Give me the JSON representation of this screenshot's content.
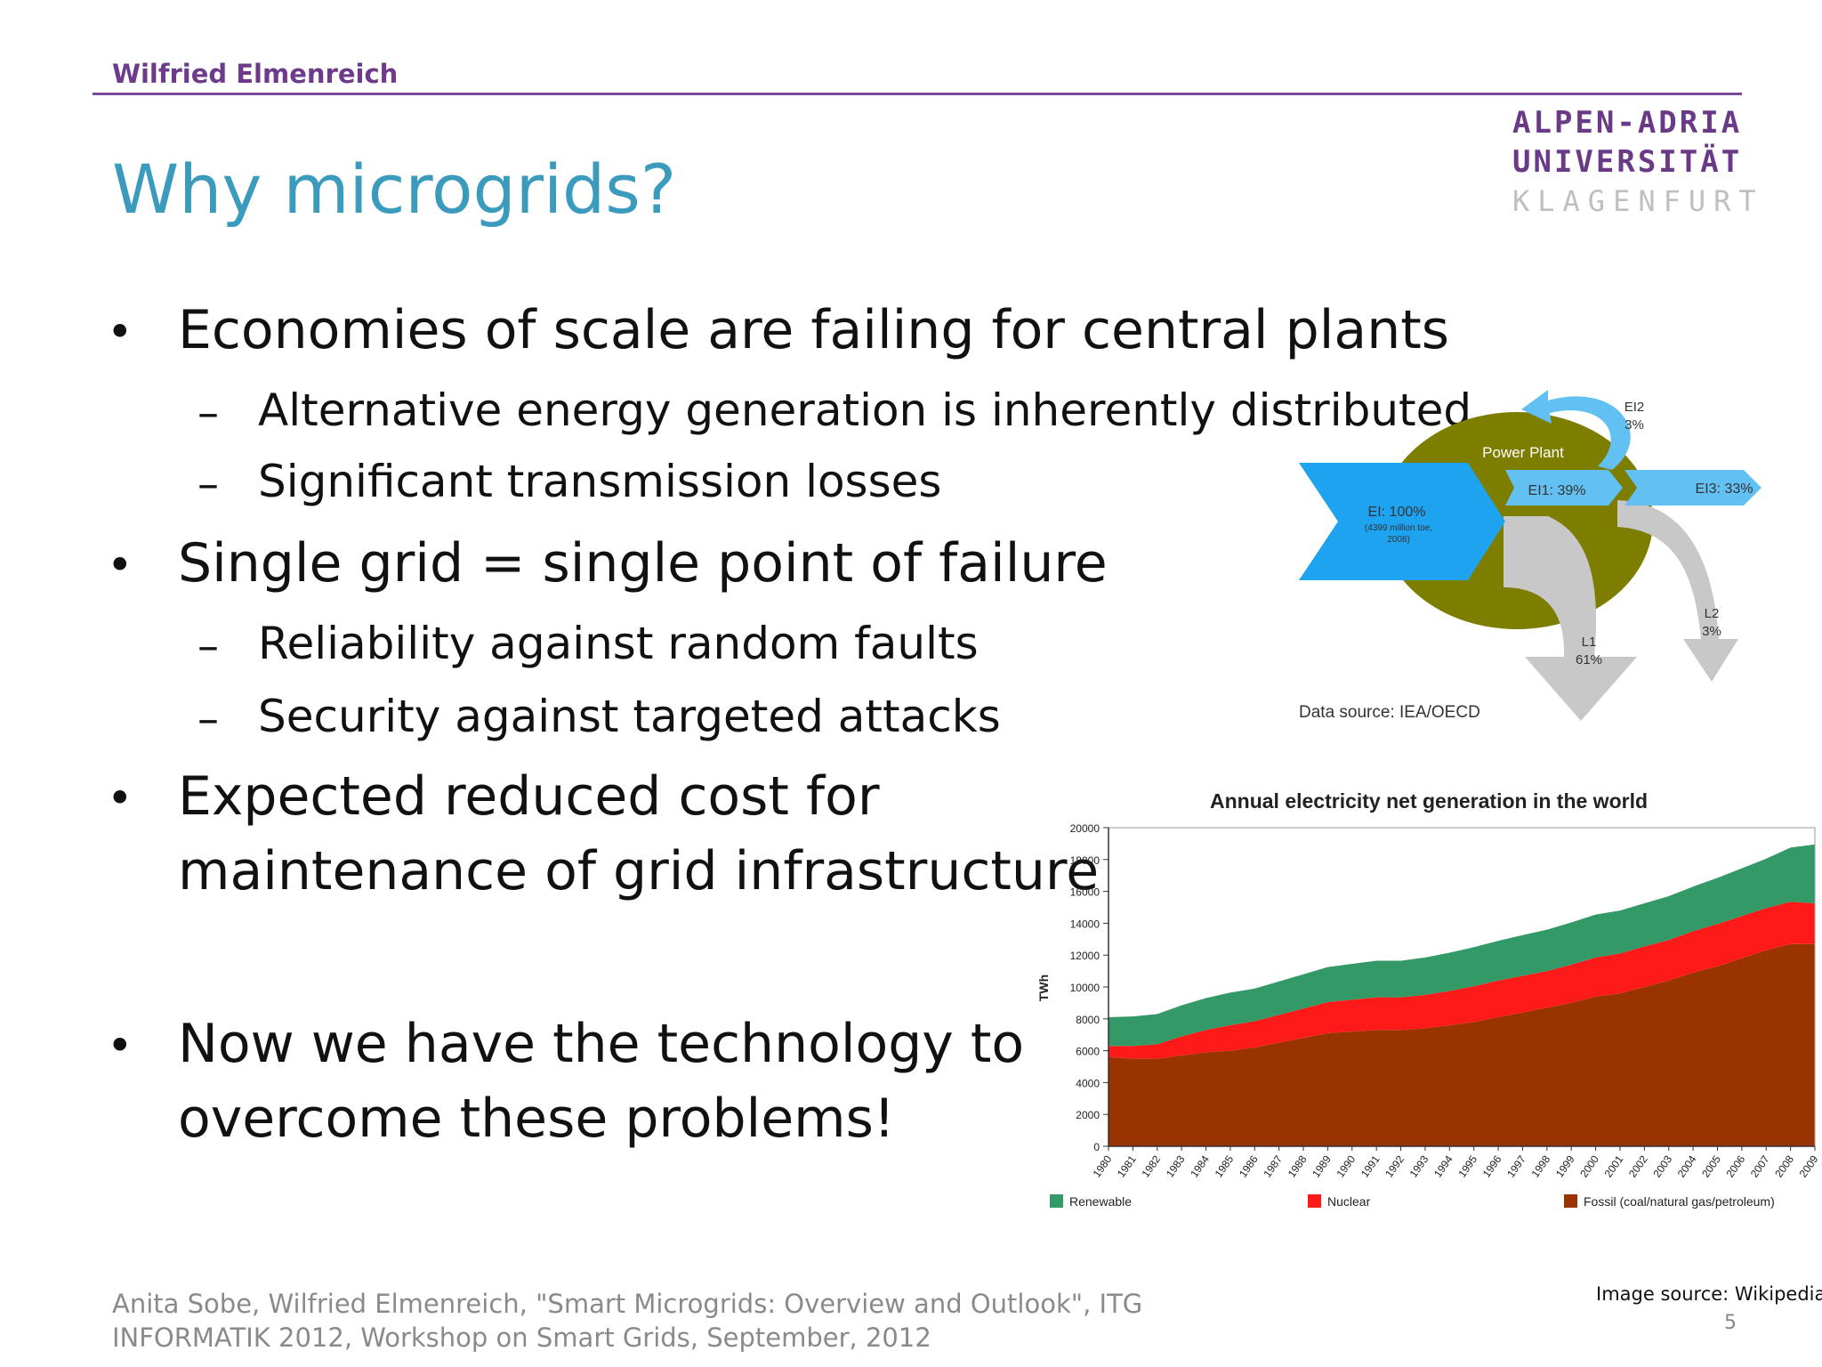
{
  "header": {
    "author": "Wilfried Elmenreich",
    "logo_lines": [
      "ALPEN-ADRIA",
      "UNIVERSITÄT",
      "KLAGENFURT"
    ]
  },
  "title": "Why microgrids?",
  "bullets": [
    {
      "text": "Economies of scale are failing for central plants",
      "sub": [
        "Alternative energy generation is inherently distributed",
        "Significant transmission losses"
      ]
    },
    {
      "text": "Single grid = single point of failure",
      "sub": [
        "Reliability against random faults",
        "Security against targeted attacks"
      ]
    },
    {
      "lines": [
        "Expected reduced cost for",
        "maintenance of grid infrastructure"
      ]
    },
    {
      "lines": [
        "Now we have the technology to",
        "overcome these problems!"
      ]
    }
  ],
  "bullet_glyph": "•",
  "sub_glyph": "–",
  "sankey": {
    "plant_label": "Power Plant",
    "e1_label": "EI: 100%",
    "e1_note_1": "(4399 million toe,",
    "e1_note_2": "2008)",
    "ei1_label": "EI1: 39%",
    "ei2_label_1": "EI2",
    "ei2_label_2": "3%",
    "ei3_label": "EI3: 33%",
    "l1_label_1": "L1",
    "l1_label_2": "61%",
    "l2_label_1": "L2",
    "l2_label_2": "3%",
    "source": "Data source: IEA/OECD",
    "colors": {
      "input": "#1ea3f0",
      "plant": "#7d7d00",
      "loss": "#c8c8c8",
      "output": "#62c0f2"
    }
  },
  "chart_data": {
    "type": "area",
    "title": "Annual electricity net generation in the world",
    "ylabel": "TWh",
    "xlabel": "",
    "ylim": [
      0,
      20000
    ],
    "yticks": [
      0,
      2000,
      4000,
      6000,
      8000,
      10000,
      12000,
      14000,
      16000,
      18000,
      20000
    ],
    "x": [
      "1980",
      "1981",
      "1982",
      "1983",
      "1984",
      "1985",
      "1986",
      "1987",
      "1988",
      "1989",
      "1990",
      "1991",
      "1992",
      "1993",
      "1994",
      "1995",
      "1996",
      "1997",
      "1998",
      "1999",
      "2000",
      "2001",
      "2002",
      "2003",
      "2004",
      "2005",
      "2006",
      "2007",
      "2008",
      "2009"
    ],
    "stacked": true,
    "series": [
      {
        "name": "Fossil (coal/natural gas/petroleum)",
        "color": "#993300",
        "values": [
          5600,
          5500,
          5500,
          5700,
          5900,
          6000,
          6200,
          6500,
          6800,
          7100,
          7200,
          7300,
          7300,
          7400,
          7600,
          7800,
          8100,
          8400,
          8700,
          9000,
          9400,
          9600,
          10000,
          10400,
          10900,
          11300,
          11800,
          12300,
          12700,
          12700
        ]
      },
      {
        "name": "Nuclear",
        "color": "#ff1a1a",
        "values": [
          700,
          800,
          900,
          1200,
          1400,
          1600,
          1650,
          1750,
          1850,
          1950,
          2000,
          2050,
          2050,
          2100,
          2150,
          2250,
          2300,
          2300,
          2300,
          2400,
          2450,
          2500,
          2550,
          2550,
          2600,
          2650,
          2650,
          2650,
          2650,
          2550
        ]
      },
      {
        "name": "Renewable",
        "color": "#339966",
        "values": [
          1800,
          1850,
          1900,
          1950,
          2000,
          2050,
          2050,
          2100,
          2150,
          2200,
          2250,
          2300,
          2300,
          2350,
          2400,
          2450,
          2500,
          2550,
          2600,
          2650,
          2700,
          2700,
          2700,
          2750,
          2800,
          2900,
          3000,
          3100,
          3400,
          3700
        ]
      }
    ],
    "legend_position": "bottom",
    "grid": false
  },
  "image_source": "Image source: Wikipedia",
  "page_number": "5",
  "footer": {
    "line1": "Anita Sobe, Wilfried Elmenreich, \"Smart Microgrids: Overview and Outlook\", ITG",
    "line2": "INFORMATIK 2012, Workshop on Smart Grids, September, 2012"
  }
}
